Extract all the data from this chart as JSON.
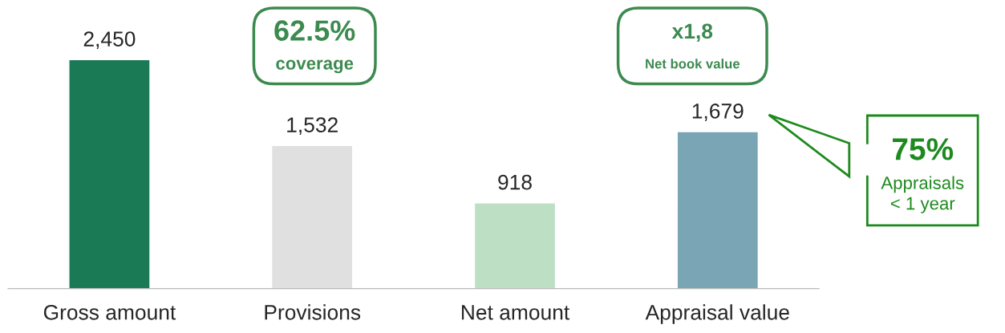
{
  "chart_data": {
    "type": "bar",
    "categories": [
      "Gross amount",
      "Provisions",
      "Net amount",
      "Appraisal value"
    ],
    "values": [
      2450,
      1532,
      918,
      1679
    ],
    "colors": [
      "#1a7a56",
      "#e0e0e0",
      "#bde0c4",
      "#79a5b4"
    ],
    "data_labels": true,
    "value_labels": [
      "2,450",
      "1,532",
      "918",
      "1,679"
    ],
    "annotations": [
      "62.5%\ncoverage",
      "x1,8\nNet book value",
      "75%\nAppraisals\n< 1 year"
    ]
  }
}
